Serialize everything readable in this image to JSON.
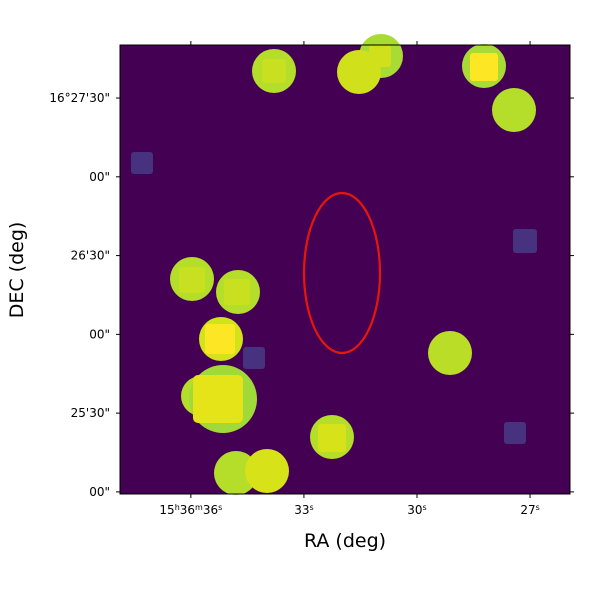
{
  "chart_data": {
    "type": "image",
    "xlabel": "RA (deg)",
    "ylabel": "DEC (deg)",
    "xlim": [
      37.88,
      25.94
    ],
    "xticks": [
      {
        "value": 36,
        "label": [
          "15",
          "h",
          "36",
          "m",
          "36",
          "s"
        ]
      },
      {
        "value": 33,
        "label": [
          "33",
          "s"
        ]
      },
      {
        "value": 30,
        "label": [
          "30",
          "s"
        ]
      },
      {
        "value": 27,
        "label": [
          "27",
          "s"
        ]
      }
    ],
    "ylim": [
      -0.8,
      170.2
    ],
    "yticks": [
      {
        "value": 0,
        "label": "00\""
      },
      {
        "value": 30,
        "label": "25'30\""
      },
      {
        "value": 60,
        "label": "00\""
      },
      {
        "value": 90,
        "label": "26'30\""
      },
      {
        "value": 120,
        "label": "00\""
      },
      {
        "value": 150,
        "label": "16°27'30\""
      }
    ]
  }
}
